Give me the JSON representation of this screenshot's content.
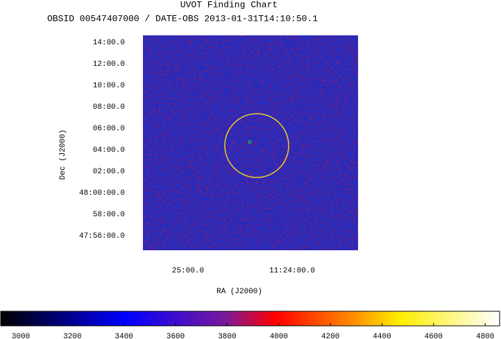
{
  "chart_data": {
    "type": "image",
    "title": "UVOT Finding Chart",
    "subtitle": "OBSID 00547407000 / DATE-OBS 2013-01-31T14:10:50.1",
    "xlabel": "RA (J2000)",
    "ylabel": "Dec (J2000)",
    "xlim": [
      171.3583,
      170.8417
    ],
    "xticks": [
      {
        "value": 171.25,
        "label": "25:00.0"
      },
      {
        "value": 171.0,
        "label": "11:24:00.0"
      }
    ],
    "ylim": [
      47.9108,
      48.2441
    ],
    "yticks": [
      {
        "value": 48.23333,
        "label": "14:00.0"
      },
      {
        "value": 48.2,
        "label": "12:00.0"
      },
      {
        "value": 48.16667,
        "label": "10:00.0"
      },
      {
        "value": 48.13333,
        "label": "08:00.0"
      },
      {
        "value": 48.1,
        "label": "06:00.0"
      },
      {
        "value": 48.06667,
        "label": "04:00.0"
      },
      {
        "value": 48.03333,
        "label": "02:00.0"
      },
      {
        "value": 48.0,
        "label": "48:00:00.0"
      },
      {
        "value": 47.96667,
        "label": "58:00.0"
      },
      {
        "value": 47.93333,
        "label": "47:56:00.0"
      }
    ],
    "clim": [
      2922,
      4856
    ],
    "cticks": [
      3000,
      3200,
      3400,
      3600,
      3800,
      4000,
      4200,
      4400,
      4600,
      4800
    ]
  }
}
